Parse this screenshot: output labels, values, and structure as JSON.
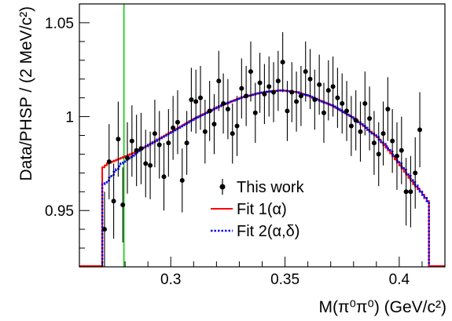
{
  "chart_data": {
    "type": "scatter",
    "xlabel": "M(π⁰π⁰) (GeV/c²)",
    "ylabel": "Data/PHSP / (2 MeV/c²)",
    "xlim": [
      0.26,
      0.42
    ],
    "ylim": [
      0.92,
      1.06
    ],
    "x_ticks": [
      0.3,
      0.35,
      0.4
    ],
    "x_tick_labels": [
      "0.3",
      "0.35",
      "0.4"
    ],
    "y_ticks": [
      0.95,
      1.0,
      1.05
    ],
    "y_tick_labels": [
      "0.95",
      "1",
      "1.05"
    ],
    "vertical_line_x": 0.2795,
    "colors": {
      "fit1": "#ff0000",
      "fit2": "#0000ff",
      "vline": "#00cc00",
      "data": "#000000"
    },
    "legend": {
      "placement": "bottom-center",
      "entries": [
        {
          "label": "This work",
          "style": "marker"
        },
        {
          "label": "Fit 1(α)",
          "style": "solid-red"
        },
        {
          "label": "Fit 2(α,δ)",
          "style": "dotted-blue"
        }
      ]
    },
    "series": [
      {
        "name": "This work",
        "x": [
          0.271,
          0.273,
          0.275,
          0.277,
          0.279,
          0.281,
          0.283,
          0.285,
          0.287,
          0.289,
          0.291,
          0.293,
          0.295,
          0.297,
          0.299,
          0.301,
          0.303,
          0.305,
          0.307,
          0.309,
          0.311,
          0.313,
          0.315,
          0.317,
          0.319,
          0.321,
          0.323,
          0.325,
          0.327,
          0.329,
          0.331,
          0.333,
          0.335,
          0.337,
          0.339,
          0.341,
          0.343,
          0.345,
          0.347,
          0.349,
          0.351,
          0.353,
          0.355,
          0.357,
          0.359,
          0.361,
          0.363,
          0.365,
          0.367,
          0.369,
          0.371,
          0.373,
          0.375,
          0.377,
          0.379,
          0.381,
          0.383,
          0.385,
          0.387,
          0.389,
          0.391,
          0.393,
          0.395,
          0.397,
          0.399,
          0.401,
          0.403,
          0.405,
          0.407,
          0.409
        ],
        "y": [
          0.94,
          0.976,
          0.955,
          0.988,
          0.953,
          0.978,
          0.987,
          0.982,
          0.983,
          0.975,
          0.974,
          0.991,
          0.985,
          0.968,
          0.986,
          0.994,
          0.997,
          0.966,
          0.986,
          1.009,
          1.008,
          1.01,
          0.992,
          1.003,
          0.996,
          1.019,
          1.007,
          1.004,
          0.991,
          0.995,
          1.015,
          1.011,
          1.024,
          1.002,
          1.018,
          1.012,
          1.016,
          1.013,
          1.019,
          1.029,
          1.003,
          1.013,
          1.008,
          1.011,
          1.024,
          1.02,
          1.009,
          1.017,
          1.002,
          1.014,
          1.016,
          1.01,
          1.007,
          1.003,
          0.995,
          0.998,
          0.992,
          1.007,
          0.999,
          0.986,
          0.98,
          0.991,
          1.004,
          0.987,
          0.979,
          0.982,
          0.96,
          0.96,
          0.97,
          0.993
        ],
        "yerr": [
          0.02,
          0.02,
          0.02,
          0.02,
          0.02,
          0.019,
          0.019,
          0.019,
          0.019,
          0.018,
          0.018,
          0.018,
          0.018,
          0.018,
          0.018,
          0.017,
          0.017,
          0.017,
          0.017,
          0.017,
          0.017,
          0.017,
          0.017,
          0.016,
          0.016,
          0.016,
          0.016,
          0.016,
          0.016,
          0.016,
          0.016,
          0.016,
          0.016,
          0.016,
          0.016,
          0.016,
          0.016,
          0.016,
          0.016,
          0.016,
          0.016,
          0.016,
          0.016,
          0.016,
          0.016,
          0.016,
          0.016,
          0.016,
          0.016,
          0.016,
          0.016,
          0.016,
          0.016,
          0.016,
          0.016,
          0.016,
          0.016,
          0.017,
          0.017,
          0.017,
          0.017,
          0.017,
          0.017,
          0.017,
          0.018,
          0.018,
          0.018,
          0.019,
          0.019,
          0.02
        ]
      },
      {
        "name": "Fit 1(α)",
        "x": [
          0.27,
          0.272,
          0.274,
          0.276,
          0.278,
          0.28,
          0.284,
          0.29,
          0.3,
          0.31,
          0.32,
          0.33,
          0.34,
          0.348,
          0.355,
          0.36,
          0.37,
          0.38,
          0.39,
          0.395,
          0.4,
          0.403,
          0.406,
          0.409,
          0.412,
          0.413
        ],
        "y": [
          0.973,
          0.975,
          0.976,
          0.977,
          0.978,
          0.979,
          0.981,
          0.985,
          0.992,
          0.999,
          1.005,
          1.01,
          1.013,
          1.014,
          1.013,
          1.011,
          1.006,
          0.999,
          0.989,
          0.982,
          0.974,
          0.969,
          0.964,
          0.96,
          0.955,
          0.955
        ]
      },
      {
        "name": "Fit 2(α,δ)",
        "x": [
          0.27,
          0.272,
          0.274,
          0.276,
          0.278,
          0.28,
          0.284,
          0.29,
          0.3,
          0.31,
          0.32,
          0.33,
          0.34,
          0.348,
          0.355,
          0.36,
          0.37,
          0.38,
          0.39,
          0.395,
          0.4,
          0.403,
          0.406,
          0.409,
          0.412,
          0.413
        ],
        "y": [
          0.964,
          0.966,
          0.969,
          0.972,
          0.975,
          0.977,
          0.98,
          0.985,
          0.992,
          0.999,
          1.005,
          1.01,
          1.013,
          1.014,
          1.013,
          1.011,
          1.006,
          0.999,
          0.989,
          0.983,
          0.975,
          0.97,
          0.965,
          0.96,
          0.955,
          0.955
        ]
      }
    ]
  }
}
